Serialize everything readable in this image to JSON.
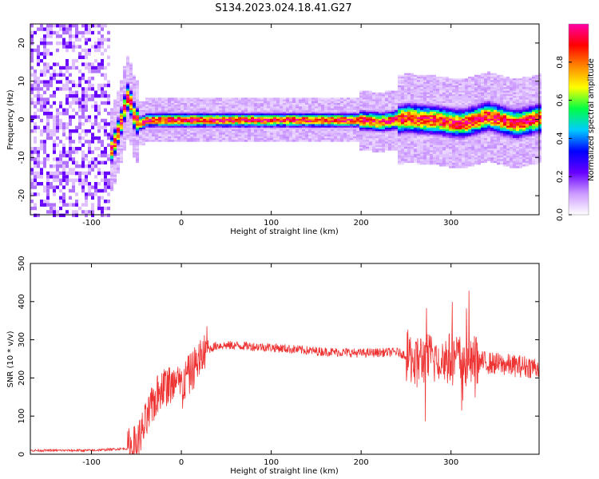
{
  "figure": {
    "title": "S134.2023.024.18.41.G27"
  },
  "chart_data": [
    {
      "type": "heatmap",
      "xlabel": "Height of straight line (km)",
      "ylabel": "Frequency (Hz)",
      "xlim": [
        -168,
        398
      ],
      "ylim": [
        -25,
        25
      ],
      "xticks": [
        -100,
        0,
        100,
        200,
        300
      ],
      "yticks": [
        -20,
        -10,
        0,
        10,
        20
      ],
      "colorbar": {
        "label": "Normalized spectral amplitude",
        "range": [
          0,
          1
        ],
        "ticks": [
          0.0,
          0.2,
          0.4,
          0.6,
          0.8
        ],
        "tick_labels": [
          "0.0",
          "0.2",
          "0.4",
          "0.6",
          "0.8"
        ],
        "colors": [
          "#ffffff",
          "#cc99ff",
          "#6600ff",
          "#0000ff",
          "#00ccff",
          "#00ff44",
          "#ffff00",
          "#ff8800",
          "#ff0000",
          "#ff00aa"
        ]
      },
      "ridge": {
        "x": [
          -86,
          -80,
          -76,
          -72,
          -68,
          -64,
          -60,
          -56,
          -52,
          -46,
          -40,
          -30,
          -20,
          0,
          50,
          100,
          150,
          195,
          220,
          250,
          280,
          310,
          340,
          370,
          398
        ],
        "frequency": [
          -9,
          -8,
          -6,
          -3,
          0,
          4,
          7,
          2,
          0,
          -1,
          0,
          0,
          0,
          0,
          0,
          0,
          0,
          0,
          -0.5,
          0.5,
          0,
          -1,
          1,
          -1,
          0.5
        ]
      },
      "noise_region_x": [
        -168,
        -80
      ]
    },
    {
      "type": "line",
      "xlabel": "Height of straight line (km)",
      "ylabel": "SNR (10 * v/v)",
      "xlim": [
        -168,
        398
      ],
      "ylim": [
        0,
        500
      ],
      "xticks": [
        -100,
        0,
        100,
        200,
        300
      ],
      "yticks": [
        0,
        100,
        200,
        300,
        400,
        500
      ],
      "series": [
        {
          "color": "#ee3333",
          "x": [
            -168,
            -100,
            -60,
            -50,
            -40,
            -30,
            -20,
            -10,
            0,
            10,
            20,
            30,
            40,
            60,
            100,
            150,
            200,
            240,
            260,
            280,
            300,
            320,
            340,
            370,
            398
          ],
          "y": [
            10,
            10,
            15,
            25,
            80,
            140,
            180,
            180,
            180,
            210,
            250,
            275,
            285,
            285,
            280,
            270,
            265,
            268,
            250,
            250,
            250,
            245,
            240,
            232,
            228
          ]
        }
      ]
    }
  ]
}
